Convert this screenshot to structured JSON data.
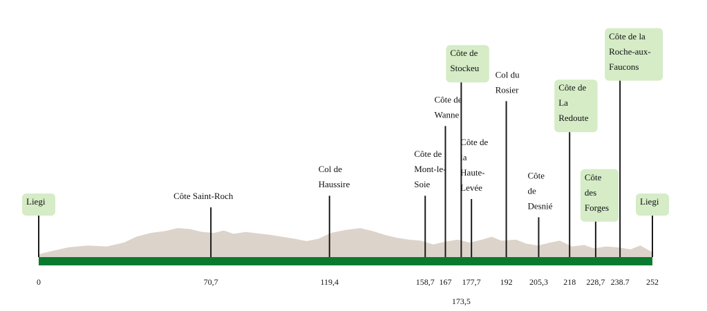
{
  "colors": {
    "terrain": "#dcd3ca",
    "road": "#0a7a2e",
    "marker": "#1a1a1a",
    "highlight": "#d5ecc6",
    "text": "#111111"
  },
  "km_range": [
    0,
    252
  ],
  "endpoints": [
    {
      "km": 0,
      "lines": [
        "Liegi"
      ]
    },
    {
      "km": 252,
      "lines": [
        "Liegi"
      ]
    }
  ],
  "climbs": [
    {
      "km": 70.7,
      "lines": [
        "Côte Saint-Roch"
      ],
      "level": 0.3,
      "highlight": false
    },
    {
      "km": 119.4,
      "lines": [
        "Col de",
        "Haussire"
      ],
      "level": 0.37,
      "highlight": false
    },
    {
      "km": 158.7,
      "lines": [
        "Côte de",
        "Mont-le-",
        "Soie"
      ],
      "level": 0.37,
      "highlight": false
    },
    {
      "km": 167,
      "lines": [
        "Côte de",
        "Wanne"
      ],
      "level": 0.79,
      "highlight": false
    },
    {
      "km": 173.5,
      "lines": [
        "Côte de",
        "Stockeu"
      ],
      "level": 1.07,
      "highlight": true
    },
    {
      "km": 177.7,
      "lines": [
        "Côte de",
        "la",
        "Haute-",
        "Levée"
      ],
      "level": 0.35,
      "highlight": false
    },
    {
      "km": 192,
      "lines": [
        "Col du",
        "Rosier"
      ],
      "level": 0.94,
      "highlight": false
    },
    {
      "km": 205.3,
      "lines": [
        "Côte",
        "de",
        "Desnié"
      ],
      "level": 0.24,
      "highlight": false
    },
    {
      "km": 218,
      "lines": [
        "Côte de",
        "La",
        "Redoute"
      ],
      "level": 0.77,
      "highlight": true
    },
    {
      "km": 228.7,
      "lines": [
        "Côte",
        "des",
        "Forges"
      ],
      "level": 0.23,
      "highlight": true
    },
    {
      "km": 238.7,
      "lines": [
        "Côte de la",
        "Roche-aux-",
        "Faucons"
      ],
      "level": 1.08,
      "highlight": true
    }
  ],
  "km_labels": [
    {
      "km": 0,
      "text": "0"
    },
    {
      "km": 70.7,
      "text": "70,7"
    },
    {
      "km": 119.4,
      "text": "119,4"
    },
    {
      "km": 158.7,
      "text": "158,7"
    },
    {
      "km": 167,
      "text": "167"
    },
    {
      "km": 173.5,
      "text": "173,5",
      "row": 2
    },
    {
      "km": 177.7,
      "text": "177,7"
    },
    {
      "km": 192,
      "text": "192"
    },
    {
      "km": 205.3,
      "text": "205,3"
    },
    {
      "km": 218,
      "text": "218"
    },
    {
      "km": 228.7,
      "text": "228,7"
    },
    {
      "km": 238.7,
      "text": "238.7"
    },
    {
      "km": 252,
      "text": "252"
    }
  ],
  "elevation_profile": [
    [
      0,
      0.06
    ],
    [
      5,
      0.12
    ],
    [
      12,
      0.2
    ],
    [
      20,
      0.24
    ],
    [
      28,
      0.22
    ],
    [
      35,
      0.3
    ],
    [
      40,
      0.42
    ],
    [
      46,
      0.5
    ],
    [
      52,
      0.54
    ],
    [
      57,
      0.6
    ],
    [
      62,
      0.58
    ],
    [
      67,
      0.52
    ],
    [
      72,
      0.5
    ],
    [
      76,
      0.55
    ],
    [
      80,
      0.48
    ],
    [
      85,
      0.52
    ],
    [
      90,
      0.49
    ],
    [
      95,
      0.46
    ],
    [
      100,
      0.42
    ],
    [
      105,
      0.38
    ],
    [
      110,
      0.33
    ],
    [
      115,
      0.38
    ],
    [
      120,
      0.5
    ],
    [
      126,
      0.56
    ],
    [
      132,
      0.6
    ],
    [
      137,
      0.54
    ],
    [
      142,
      0.46
    ],
    [
      147,
      0.4
    ],
    [
      152,
      0.36
    ],
    [
      157,
      0.34
    ],
    [
      162,
      0.26
    ],
    [
      167,
      0.32
    ],
    [
      172,
      0.36
    ],
    [
      177,
      0.3
    ],
    [
      182,
      0.36
    ],
    [
      186,
      0.42
    ],
    [
      190,
      0.34
    ],
    [
      196,
      0.36
    ],
    [
      200,
      0.28
    ],
    [
      205,
      0.24
    ],
    [
      210,
      0.3
    ],
    [
      214,
      0.34
    ],
    [
      219,
      0.22
    ],
    [
      224,
      0.25
    ],
    [
      228,
      0.18
    ],
    [
      233,
      0.22
    ],
    [
      238,
      0.2
    ],
    [
      243,
      0.16
    ],
    [
      247,
      0.24
    ],
    [
      252,
      0.1
    ]
  ]
}
